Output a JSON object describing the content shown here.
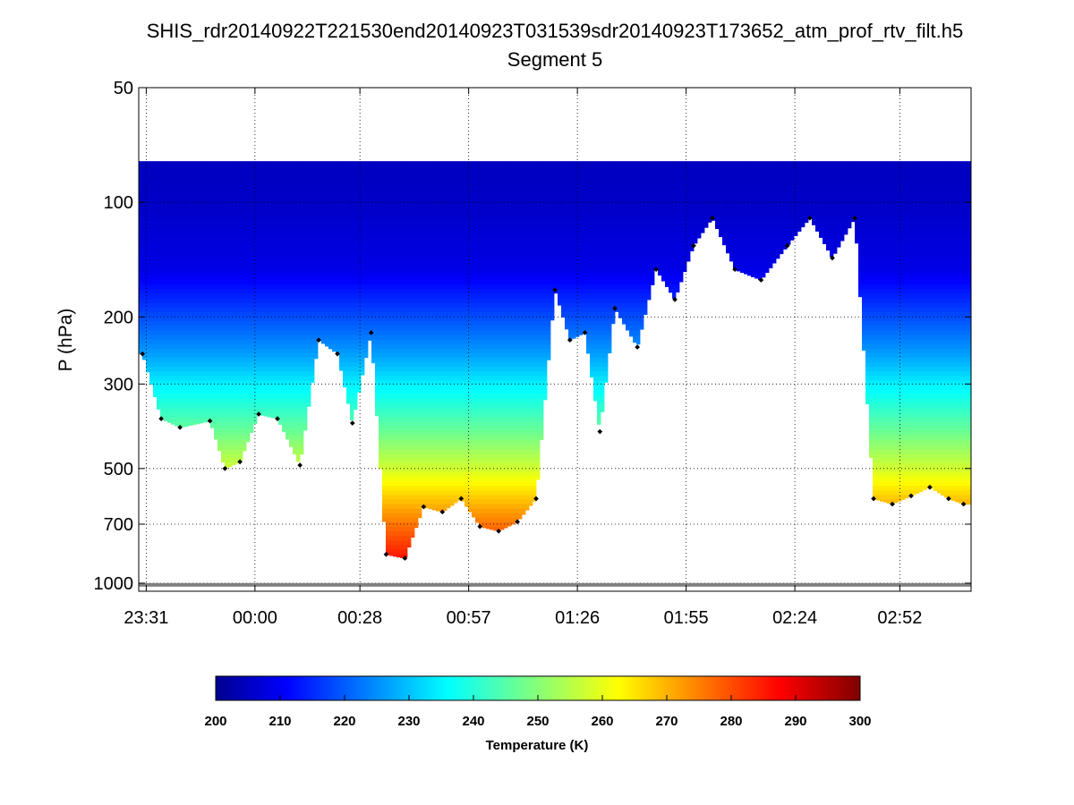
{
  "chart_data": {
    "type": "heatmap",
    "title": "SHIS_rdr20140922T221530end20140923T031539sdr20140923T173652_atm_prof_rtv_filt.h5",
    "subtitle": "Segment 5",
    "ylabel": "P (hPa)",
    "y_scale": "log",
    "y_reversed": true,
    "ylim": [
      50,
      1050
    ],
    "y_ticks": [
      50,
      100,
      200,
      300,
      500,
      700,
      1000
    ],
    "y_tick_labels": [
      "50",
      "100",
      "200",
      "300",
      "500",
      "700",
      "1000"
    ],
    "xlim": [
      "23:29",
      "03:11"
    ],
    "x_ticks": [
      "23:31",
      "00:00",
      "00:28",
      "00:57",
      "01:26",
      "01:55",
      "02:24",
      "02:52"
    ],
    "grid": true,
    "colorbar": {
      "label": "Temperature (K)",
      "range": [
        200,
        300
      ],
      "ticks": [
        200,
        210,
        220,
        230,
        240,
        250,
        260,
        270,
        280,
        290,
        300
      ],
      "colormap": "jet",
      "orientation": "horizontal"
    },
    "tropopause_pressure_hPa": 78,
    "cloud_top_series_hPa": {
      "x": [
        "23:30",
        "23:35",
        "23:40",
        "23:48",
        "23:52",
        "23:56",
        "00:01",
        "00:06",
        "00:12",
        "00:17",
        "00:22",
        "00:26",
        "00:31",
        "00:35",
        "00:40",
        "00:45",
        "00:50",
        "00:55",
        "01:00",
        "01:05",
        "01:10",
        "01:15",
        "01:20",
        "01:24",
        "01:28",
        "01:32",
        "01:36",
        "01:42",
        "01:47",
        "01:52",
        "01:57",
        "02:02",
        "02:08",
        "02:15",
        "02:22",
        "02:28",
        "02:34",
        "02:40",
        "02:45",
        "02:50",
        "02:55",
        "03:00",
        "03:05",
        "03:09"
      ],
      "y": [
        250,
        370,
        390,
        375,
        500,
        480,
        360,
        370,
        490,
        230,
        250,
        380,
        220,
        840,
        860,
        630,
        650,
        600,
        710,
        730,
        690,
        600,
        170,
        230,
        220,
        400,
        190,
        240,
        150,
        180,
        130,
        110,
        150,
        160,
        130,
        110,
        140,
        110,
        600,
        620,
        590,
        560,
        600,
        620
      ]
    },
    "surface_pressure_hPa": 1010
  }
}
